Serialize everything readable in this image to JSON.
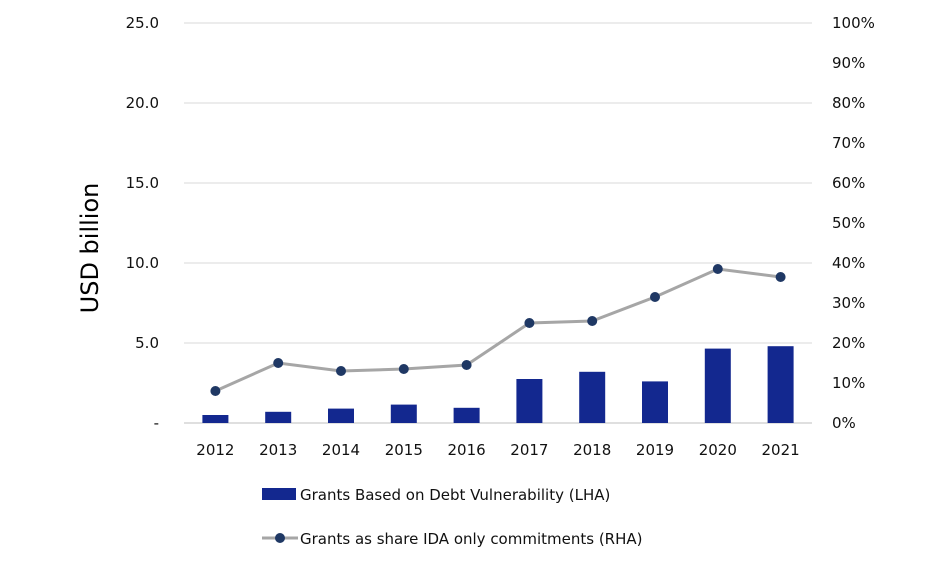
{
  "chart_data": {
    "type": "bar",
    "categories": [
      "2012",
      "2013",
      "2014",
      "2015",
      "2016",
      "2017",
      "2018",
      "2019",
      "2020",
      "2021"
    ],
    "ylabel": "USD billion",
    "ylim": [
      0,
      25
    ],
    "y_ticks": [
      "-",
      "5.0",
      "10.0",
      "15.0",
      "20.0",
      "25.0"
    ],
    "y2lim": [
      0,
      100
    ],
    "y2_ticks": [
      "0%",
      "10%",
      "20%",
      "30%",
      "40%",
      "50%",
      "60%",
      "70%",
      "80%",
      "90%",
      "100%"
    ],
    "grid": true,
    "legend_position": "bottom",
    "series": [
      {
        "name": "Grants Based on Debt Vulnerability (LHA)",
        "type": "bar",
        "axis": "left",
        "color": "#13288f",
        "values": [
          0.5,
          0.7,
          0.9,
          1.15,
          0.95,
          2.75,
          3.2,
          2.6,
          4.65,
          4.8
        ]
      },
      {
        "name": "Grants as share IDA only commitments (RHA)",
        "type": "line",
        "axis": "right",
        "color": "#a6a6a6",
        "marker_color": "#1f3864",
        "values": [
          8,
          15,
          13,
          13.5,
          14.5,
          25,
          25.5,
          31.5,
          38.5,
          36.5
        ]
      }
    ]
  }
}
